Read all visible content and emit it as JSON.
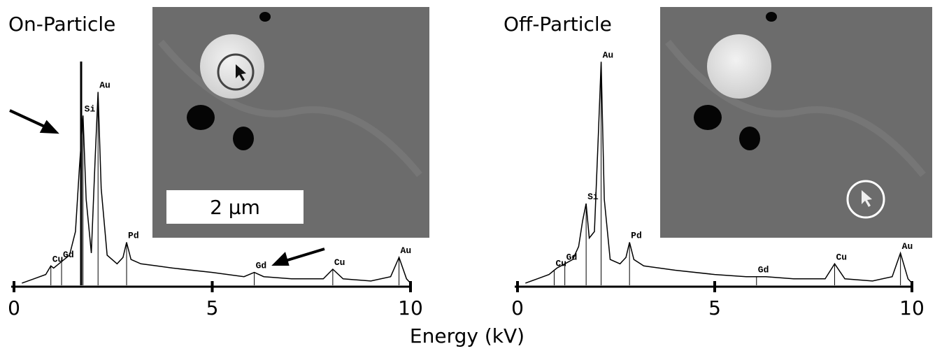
{
  "chart_data": [
    {
      "type": "line",
      "title": "On-Particle",
      "xlabel": "Energy (kV)",
      "scale_bar": "2 µm",
      "x": [
        0.2,
        0.5,
        0.8,
        0.93,
        1.0,
        1.2,
        1.4,
        1.55,
        1.65,
        1.74,
        1.82,
        1.95,
        2.05,
        2.12,
        2.2,
        2.35,
        2.6,
        2.75,
        2.84,
        2.95,
        3.2,
        3.6,
        4,
        5,
        5.8,
        6.06,
        6.3,
        7,
        7.8,
        8.04,
        8.3,
        9,
        9.5,
        9.71,
        9.9,
        10
      ],
      "series": [
        {
          "color": "#000000",
          "values": [
            1,
            3,
            5,
            9,
            8,
            11,
            14,
            25,
            55,
            79,
            40,
            15,
            60,
            90,
            45,
            14,
            10,
            13,
            20,
            12,
            10,
            9,
            8,
            6,
            4,
            6,
            4,
            3,
            3,
            7.5,
            3,
            2,
            4,
            13,
            3,
            1
          ]
        }
      ],
      "peak_labels": [
        {
          "label": "Cu",
          "x": 0.93
        },
        {
          "label": "Gd",
          "x": 1.2
        },
        {
          "label": "Si",
          "x": 1.74
        },
        {
          "label": "Au",
          "x": 2.12
        },
        {
          "label": "Pd",
          "x": 2.84
        },
        {
          "label": "Gd",
          "x": 6.06
        },
        {
          "label": "Cu",
          "x": 8.04
        },
        {
          "label": "Au",
          "x": 9.71
        }
      ],
      "xlim": [
        0,
        10
      ],
      "xticks": [
        0,
        5,
        10
      ],
      "ylim": [
        0,
        110
      ]
    },
    {
      "type": "line",
      "title": "Off-Particle",
      "x": [
        0.2,
        0.5,
        0.8,
        0.93,
        1.0,
        1.2,
        1.4,
        1.55,
        1.65,
        1.74,
        1.82,
        1.95,
        2.05,
        2.12,
        2.2,
        2.35,
        2.6,
        2.75,
        2.84,
        2.95,
        3.2,
        3.6,
        4,
        5,
        5.8,
        6.06,
        6.3,
        7,
        7.8,
        8.04,
        8.3,
        9,
        9.5,
        9.71,
        9.9,
        10
      ],
      "series": [
        {
          "color": "#000000",
          "values": [
            1,
            3,
            5,
            7,
            8,
            10,
            12,
            18,
            30,
            38,
            22,
            25,
            70,
            104,
            40,
            12,
            10,
            13,
            20,
            12,
            9,
            8,
            7,
            5,
            4,
            4,
            4,
            3,
            3,
            10,
            3,
            2,
            4,
            15,
            3,
            1
          ]
        }
      ],
      "peak_labels": [
        {
          "label": "Cu",
          "x": 0.93
        },
        {
          "label": "Gd",
          "x": 1.2
        },
        {
          "label": "Si",
          "x": 1.74
        },
        {
          "label": "Au",
          "x": 2.12
        },
        {
          "label": "Pd",
          "x": 2.84
        },
        {
          "label": "Gd",
          "x": 6.06
        },
        {
          "label": "Cu",
          "x": 8.04
        },
        {
          "label": "Au",
          "x": 9.71
        }
      ],
      "xlim": [
        0,
        10
      ],
      "xticks": [
        0,
        5,
        10
      ],
      "ylim": [
        0,
        110
      ]
    }
  ]
}
